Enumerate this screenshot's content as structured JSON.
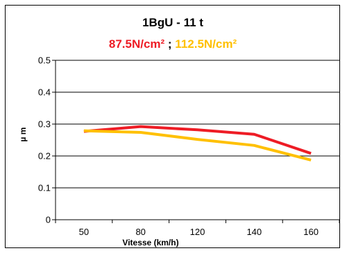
{
  "chart_data": {
    "type": "line",
    "title": "1BgU - 11 t",
    "subtitle_parts": [
      {
        "text": "87.5N/cm²",
        "color": "#ee1c25"
      },
      {
        "text": " ; ",
        "color": "#000000"
      },
      {
        "text": "112.5N/cm²",
        "color": "#ffc000"
      }
    ],
    "xlabel": "Vitesse (km/h)",
    "ylabel": "µ m",
    "categories": [
      "50",
      "80",
      "120",
      "140",
      "160"
    ],
    "ylim": [
      0,
      0.5
    ],
    "yticks": [
      "0",
      "0.1",
      "0.2",
      "0.3",
      "0.4",
      "0.5"
    ],
    "grid": true,
    "series": [
      {
        "name": "87.5N/cm²",
        "color": "#ee1c25",
        "values": [
          0.277,
          0.292,
          0.282,
          0.268,
          0.208
        ]
      },
      {
        "name": "112.5N/cm²",
        "color": "#ffc000",
        "values": [
          0.279,
          0.274,
          0.252,
          0.233,
          0.187
        ]
      }
    ]
  }
}
